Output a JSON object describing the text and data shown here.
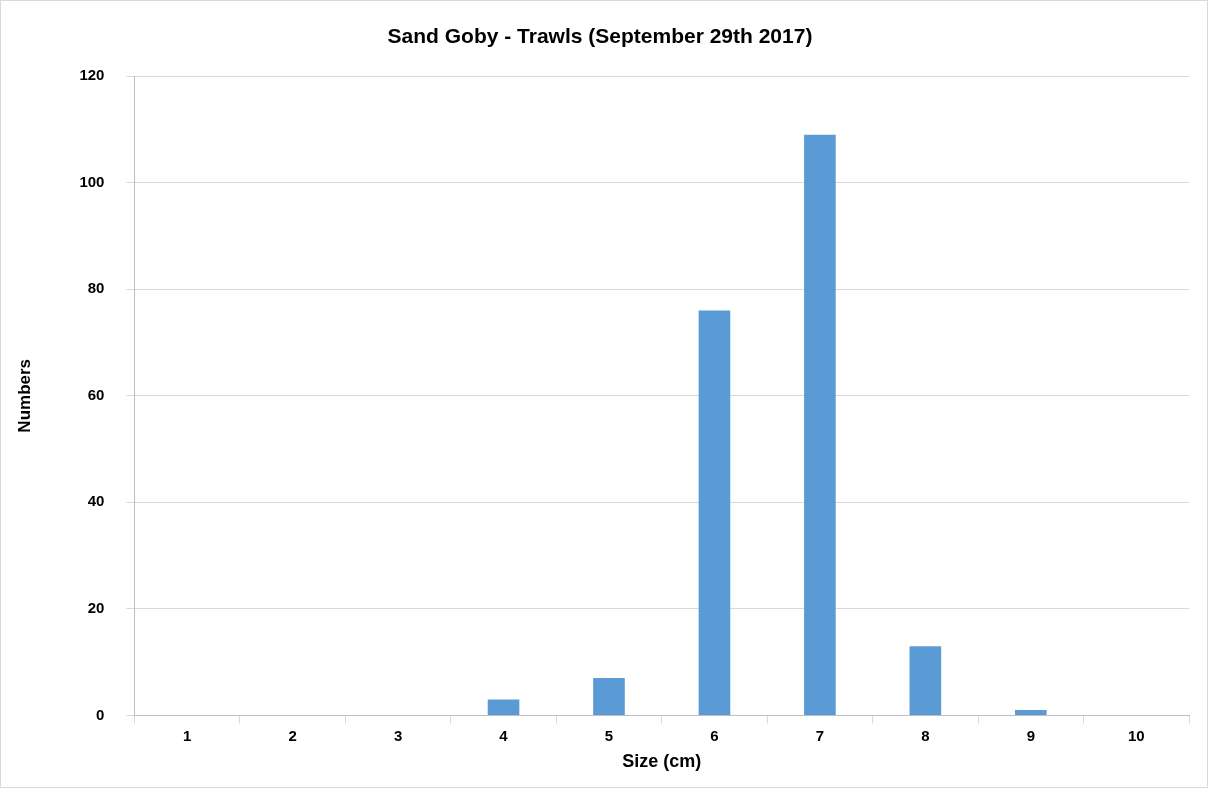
{
  "chart_data": {
    "type": "bar",
    "title": "Sand Goby - Trawls (September 29th 2017)",
    "xlabel": "Size (cm)",
    "ylabel": "Numbers",
    "categories": [
      "1",
      "2",
      "3",
      "4",
      "5",
      "6",
      "7",
      "8",
      "9",
      "10"
    ],
    "values": [
      0,
      0,
      0,
      3,
      7,
      76,
      109,
      13,
      1,
      0
    ],
    "color": "#5b9bd5",
    "ylim": [
      0,
      120
    ],
    "yticks": [
      0,
      20,
      40,
      60,
      80,
      100,
      120
    ],
    "grid": "y",
    "legend": false
  }
}
